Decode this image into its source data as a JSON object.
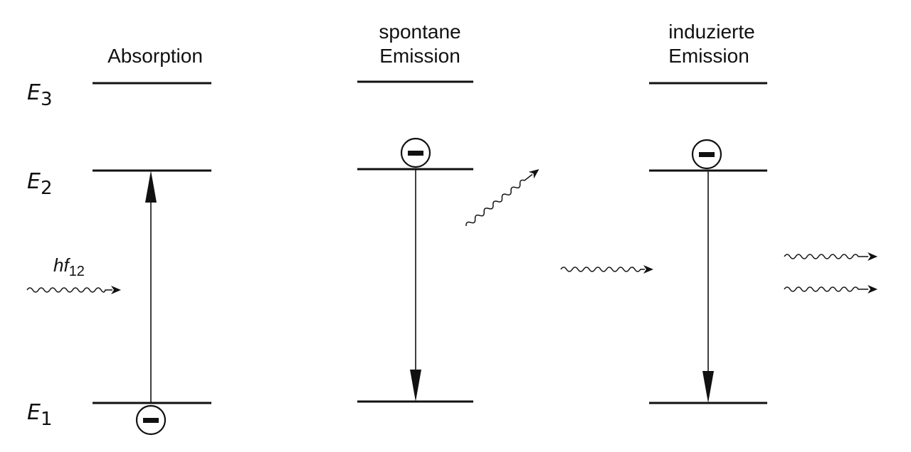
{
  "panels": [
    {
      "title_line1": "",
      "title_line2": "Absorption"
    },
    {
      "title_line1": "spontane",
      "title_line2": "Emission"
    },
    {
      "title_line1": "induzierte",
      "title_line2": "Emission"
    }
  ],
  "levels": {
    "e3": {
      "symbol": "E",
      "index": "3"
    },
    "e2": {
      "symbol": "E",
      "index": "2"
    },
    "e1": {
      "symbol": "E",
      "index": "1"
    }
  },
  "photon": {
    "symbol": "hf",
    "index": "12"
  },
  "electron_sign": "minus"
}
